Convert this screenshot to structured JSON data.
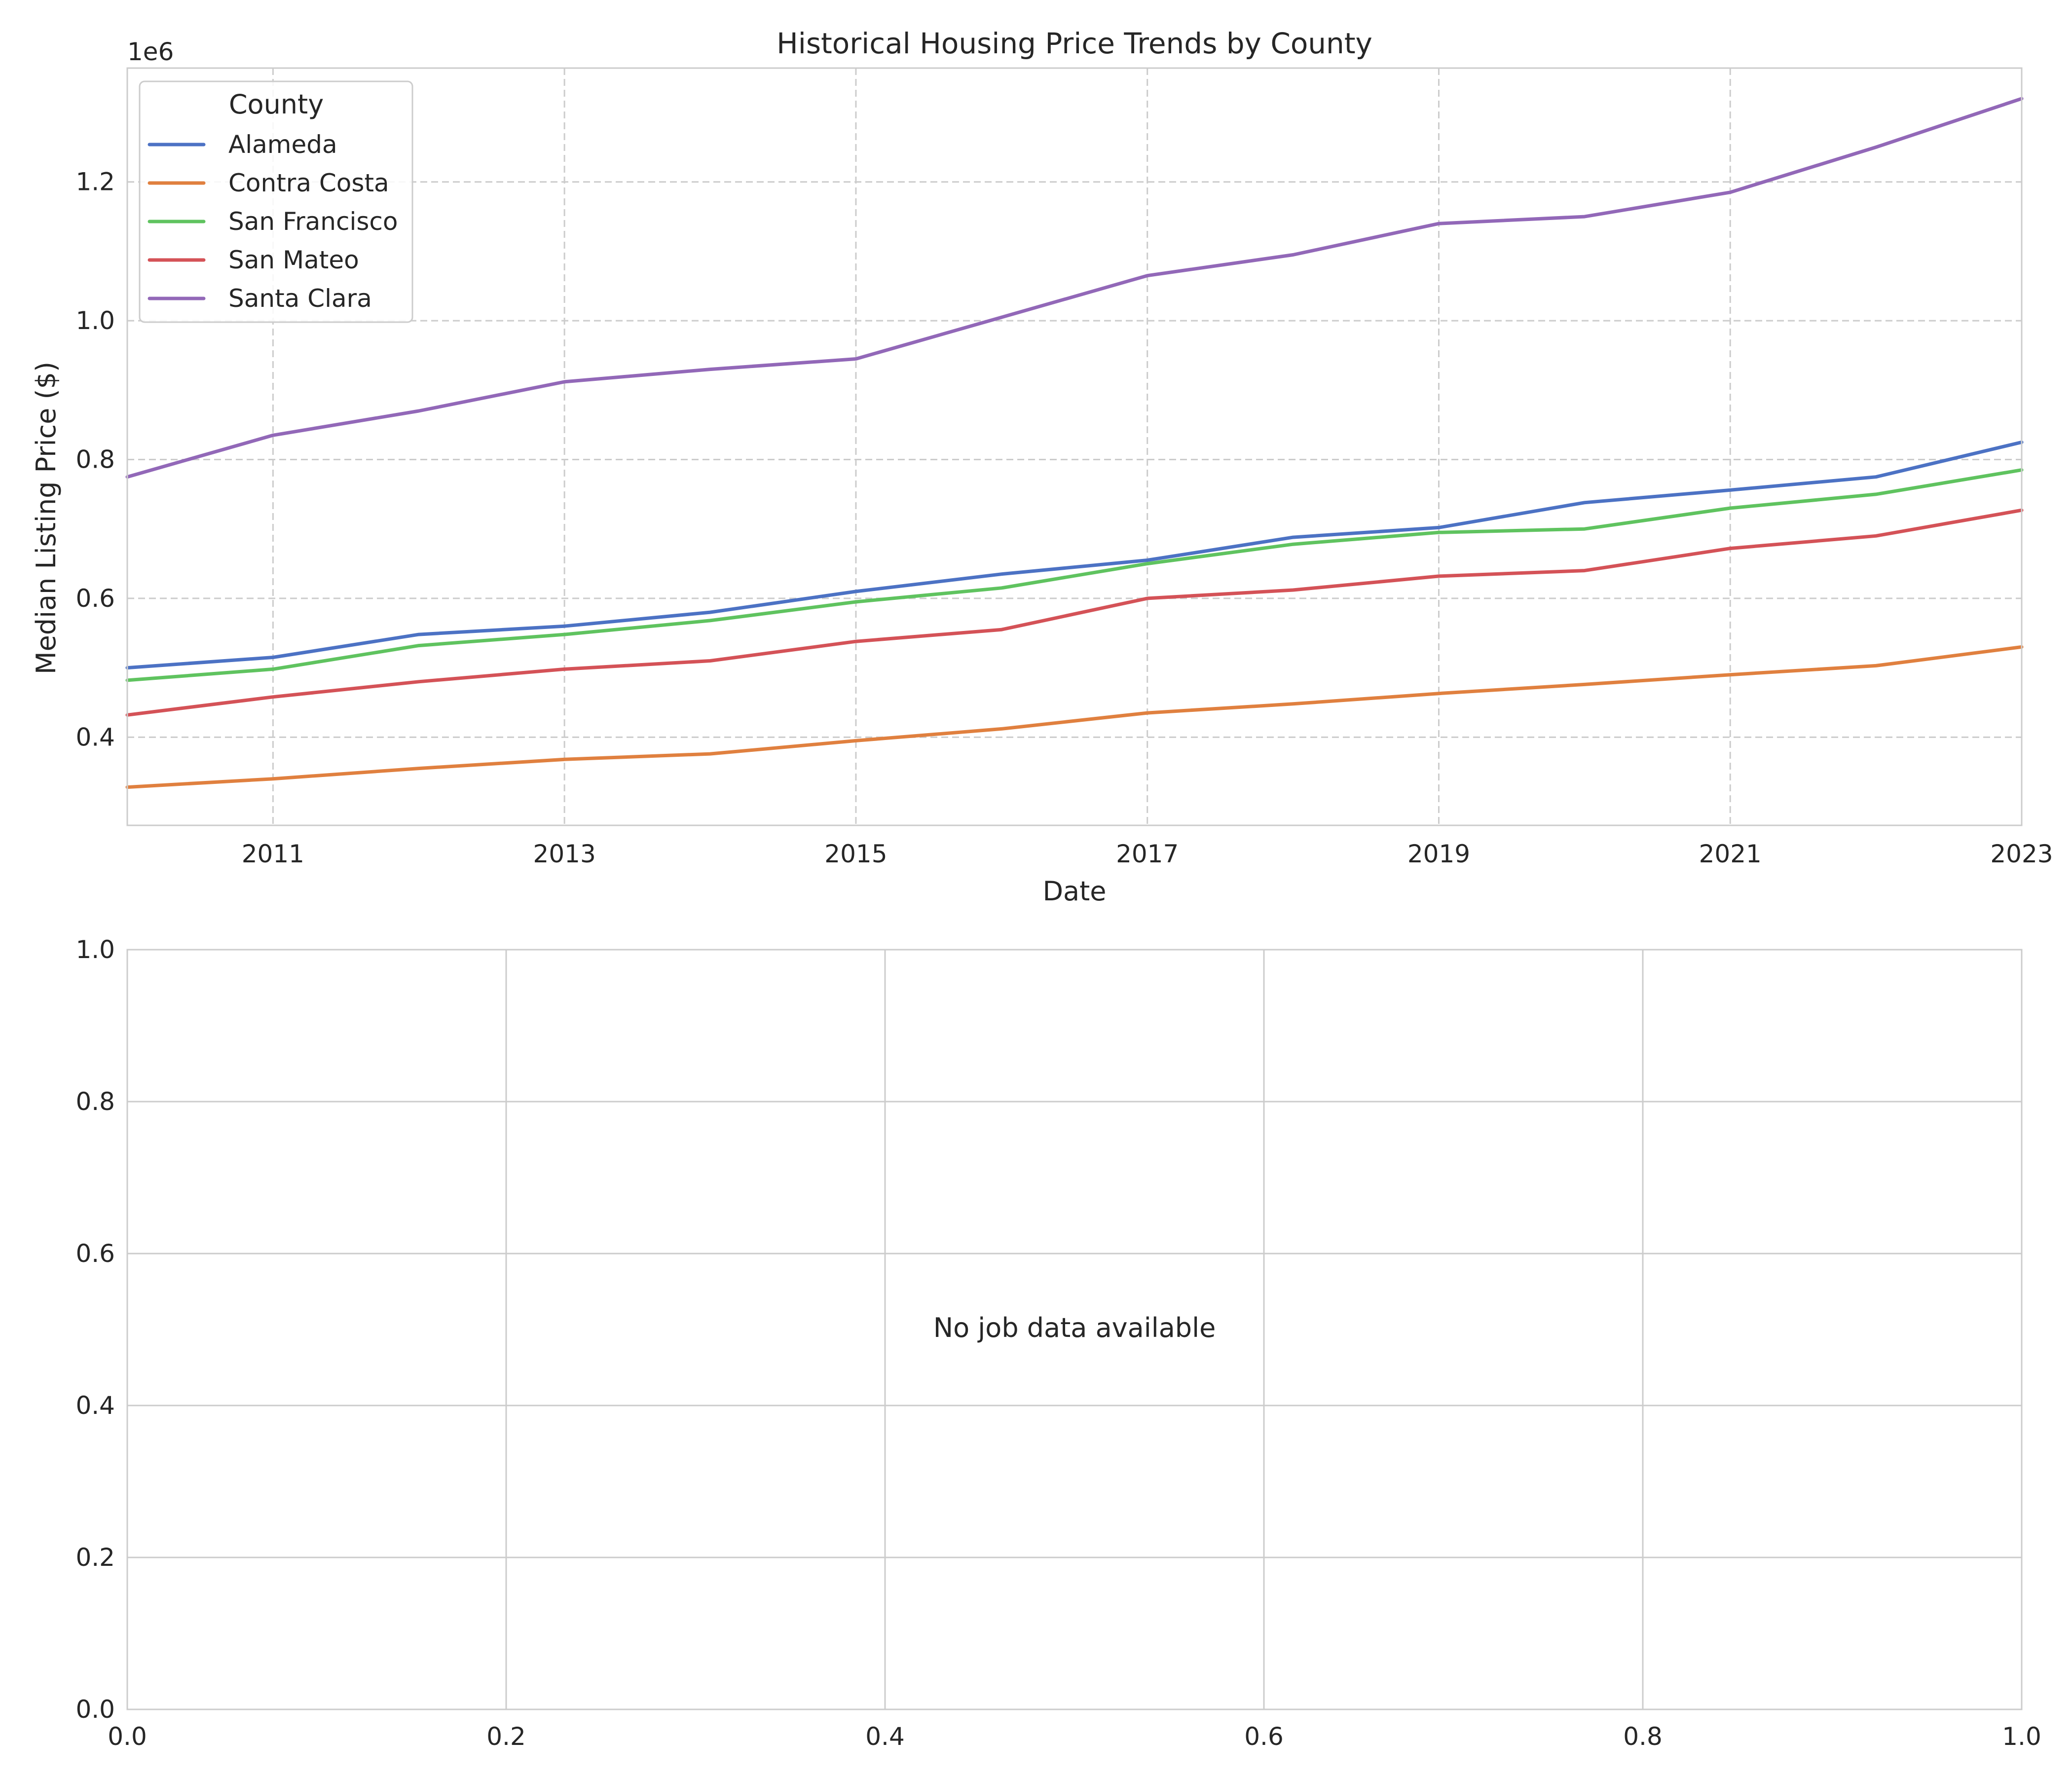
{
  "chart_data": [
    {
      "type": "line",
      "title": "Historical Housing Price Trends by County",
      "xlabel": "Date",
      "ylabel": "Median Listing Price ($)",
      "y_offset_text": "1e6",
      "x_range": [
        "2010-01",
        "2023-01"
      ],
      "x_ticks": [
        {
          "value": "2011-01",
          "label": "2011"
        },
        {
          "value": "2013-01",
          "label": "2013"
        },
        {
          "value": "2015-01",
          "label": "2015"
        },
        {
          "value": "2017-01",
          "label": "2017"
        },
        {
          "value": "2019-01",
          "label": "2019"
        },
        {
          "value": "2021-01",
          "label": "2021"
        },
        {
          "value": "2023-01",
          "label": "2023"
        }
      ],
      "ylim": [
        273000,
        1364000
      ],
      "y_ticks": [
        {
          "value": 400000,
          "label": "0.4"
        },
        {
          "value": 600000,
          "label": "0.6"
        },
        {
          "value": 800000,
          "label": "0.8"
        },
        {
          "value": 1000000,
          "label": "1.0"
        },
        {
          "value": 1200000,
          "label": "1.2"
        }
      ],
      "grid": true,
      "grid_style": "dashed",
      "legend": {
        "title": "County",
        "placement": "top-left"
      },
      "series": [
        {
          "name": "Alameda",
          "color": "#4c72c4",
          "x": [
            "2010-01",
            "2011-01",
            "2012-01",
            "2013-01",
            "2014-01",
            "2015-01",
            "2016-01",
            "2017-01",
            "2018-01",
            "2019-01",
            "2020-01",
            "2021-01",
            "2022-01",
            "2023-01"
          ],
          "values": [
            500000,
            515000,
            548000,
            560000,
            580000,
            610000,
            635000,
            655000,
            688000,
            702000,
            738000,
            756000,
            775000,
            825000
          ]
        },
        {
          "name": "Contra Costa",
          "color": "#e0803f",
          "x": [
            "2010-01",
            "2011-01",
            "2012-01",
            "2013-01",
            "2014-01",
            "2015-01",
            "2016-01",
            "2017-01",
            "2018-01",
            "2019-01",
            "2020-01",
            "2021-01",
            "2022-01",
            "2023-01"
          ],
          "values": [
            328000,
            340000,
            355000,
            368000,
            376000,
            395000,
            412000,
            435000,
            448000,
            463000,
            476000,
            490000,
            503000,
            530000
          ]
        },
        {
          "name": "San Francisco",
          "color": "#5fc35f",
          "x": [
            "2010-01",
            "2011-01",
            "2012-01",
            "2013-01",
            "2014-01",
            "2015-01",
            "2016-01",
            "2017-01",
            "2018-01",
            "2019-01",
            "2020-01",
            "2021-01",
            "2022-01",
            "2023-01"
          ],
          "values": [
            482000,
            498000,
            532000,
            548000,
            568000,
            595000,
            615000,
            650000,
            678000,
            695000,
            700000,
            730000,
            750000,
            785000
          ]
        },
        {
          "name": "San Mateo",
          "color": "#d45257",
          "x": [
            "2010-01",
            "2011-01",
            "2012-01",
            "2013-01",
            "2014-01",
            "2015-01",
            "2016-01",
            "2017-01",
            "2018-01",
            "2019-01",
            "2020-01",
            "2021-01",
            "2022-01",
            "2023-01"
          ],
          "values": [
            432000,
            458000,
            480000,
            498000,
            510000,
            538000,
            555000,
            600000,
            612000,
            632000,
            640000,
            672000,
            690000,
            727000
          ]
        },
        {
          "name": "Santa Clara",
          "color": "#9268b8",
          "x": [
            "2010-01",
            "2011-01",
            "2012-01",
            "2013-01",
            "2014-01",
            "2015-01",
            "2016-01",
            "2017-01",
            "2018-01",
            "2019-01",
            "2020-01",
            "2021-01",
            "2022-01",
            "2023-01"
          ],
          "values": [
            775000,
            835000,
            870000,
            912000,
            930000,
            945000,
            1005000,
            1065000,
            1095000,
            1140000,
            1150000,
            1185000,
            1250000,
            1320000
          ]
        }
      ]
    },
    {
      "type": "line",
      "title": "",
      "xlim": [
        0.0,
        1.0
      ],
      "ylim": [
        0.0,
        1.0
      ],
      "x_ticks": [
        {
          "value": 0.0,
          "label": "0.0"
        },
        {
          "value": 0.2,
          "label": "0.2"
        },
        {
          "value": 0.4,
          "label": "0.4"
        },
        {
          "value": 0.6,
          "label": "0.6"
        },
        {
          "value": 0.8,
          "label": "0.8"
        },
        {
          "value": 1.0,
          "label": "1.0"
        }
      ],
      "y_ticks": [
        {
          "value": 0.0,
          "label": "0.0"
        },
        {
          "value": 0.2,
          "label": "0.2"
        },
        {
          "value": 0.4,
          "label": "0.4"
        },
        {
          "value": 0.6,
          "label": "0.6"
        },
        {
          "value": 0.8,
          "label": "0.8"
        },
        {
          "value": 1.0,
          "label": "1.0"
        }
      ],
      "grid": true,
      "grid_style": "solid",
      "annotation": "No job data available",
      "series": []
    }
  ]
}
